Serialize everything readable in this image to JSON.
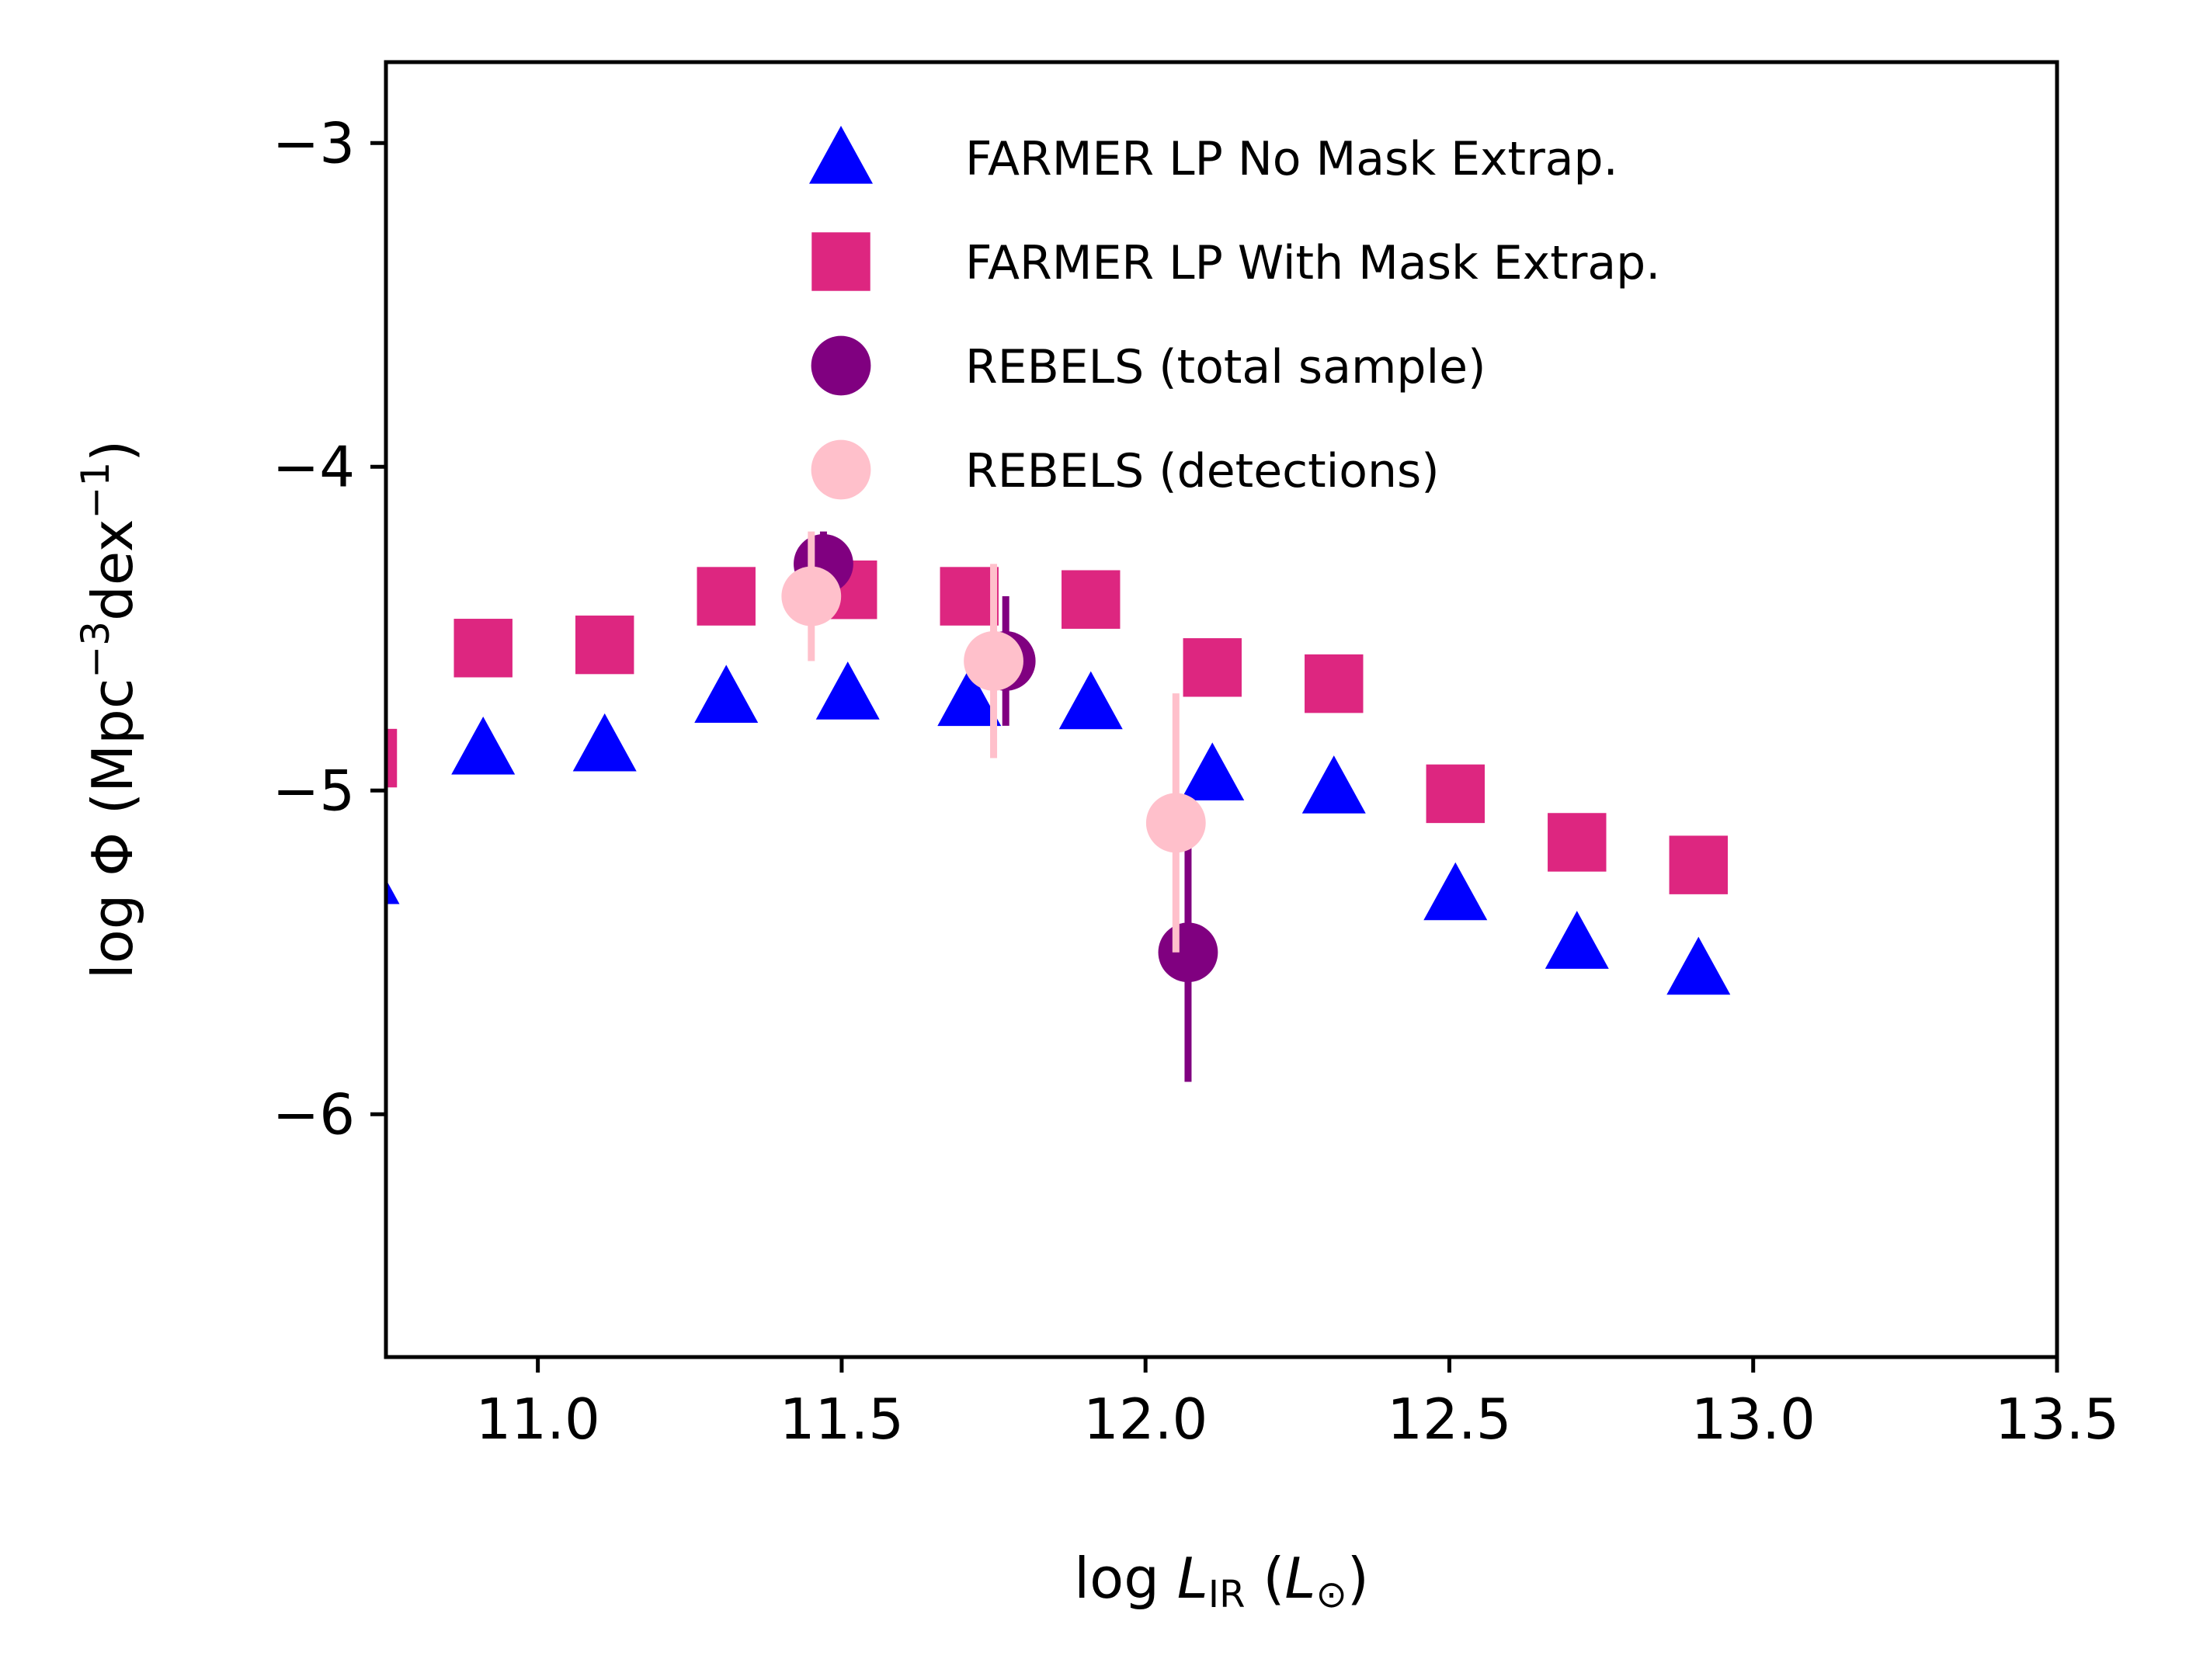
{
  "chart_data": {
    "type": "scatter",
    "title": "",
    "xlabel": {
      "prefix": "log ",
      "main": "L",
      "sub": "IR",
      "unit_open": " (",
      "unit_main": "L",
      "unit_sub": "⊙",
      "unit_close": ")"
    },
    "ylabel": {
      "text": "log Φ (Mpc",
      "sup1": "−3",
      "mid": "dex",
      "sup2": "−1",
      "close": ")"
    },
    "xlim": [
      10.75,
      13.5
    ],
    "ylim": [
      -6.75,
      -2.75
    ],
    "xticks": [
      11.0,
      11.5,
      12.0,
      12.5,
      13.0,
      13.5
    ],
    "xtick_labels": [
      "11.0",
      "11.5",
      "12.0",
      "12.5",
      "13.0",
      "13.5"
    ],
    "yticks": [
      -3,
      -4,
      -5,
      -6
    ],
    "ytick_labels": [
      "−3",
      "−4",
      "−5",
      "−6"
    ],
    "legend_position": "top-right",
    "series": [
      {
        "name": "FARMER LP No Mask Extrap.",
        "marker": "triangle",
        "color": "#0000ff",
        "x": [
          10.72,
          10.91,
          11.11,
          11.31,
          11.51,
          11.71,
          11.91,
          12.11,
          12.31,
          12.51,
          12.71,
          12.91
        ],
        "y": [
          -5.27,
          -4.87,
          -4.86,
          -4.71,
          -4.7,
          -4.72,
          -4.73,
          -4.95,
          -4.99,
          -5.32,
          -5.47,
          -5.55
        ]
      },
      {
        "name": "FARMER LP With Mask Extrap.",
        "marker": "square",
        "color": "#dd2680",
        "x": [
          10.72,
          10.91,
          11.11,
          11.31,
          11.51,
          11.71,
          11.91,
          12.11,
          12.31,
          12.51,
          12.71,
          12.91
        ],
        "y": [
          -4.9,
          -4.56,
          -4.55,
          -4.4,
          -4.38,
          -4.4,
          -4.41,
          -4.62,
          -4.67,
          -5.01,
          -5.16,
          -5.23
        ]
      },
      {
        "name": "REBELS (total sample)",
        "marker": "circle",
        "color": "#800080",
        "x": [
          11.47,
          11.77,
          12.07
        ],
        "y": [
          -4.3,
          -4.6,
          -5.5
        ],
        "yerr_low": [
          0.1,
          0.2,
          0.4
        ],
        "yerr_high": [
          0.1,
          0.2,
          0.4
        ]
      },
      {
        "name": "REBELS (detections)",
        "marker": "circle",
        "color": "#ffc0cb",
        "x": [
          11.45,
          11.75,
          12.05
        ],
        "y": [
          -4.4,
          -4.6,
          -5.1
        ],
        "yerr_low": [
          0.2,
          0.3,
          0.4
        ],
        "yerr_high": [
          0.2,
          0.3,
          0.4
        ]
      }
    ]
  }
}
